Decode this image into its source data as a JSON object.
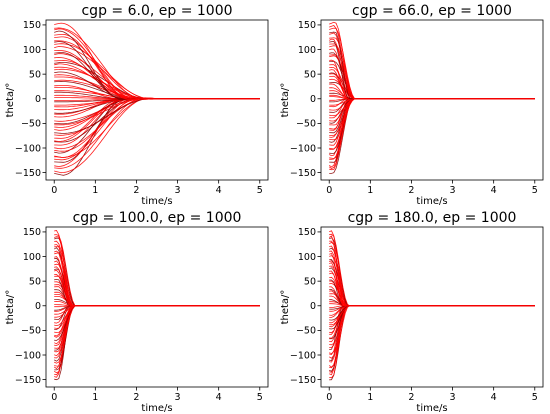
{
  "chart_data": [
    {
      "type": "line",
      "title": "cgp = 6.0, ep = 1000",
      "xlabel": "time/s",
      "ylabel": "theta/°",
      "xlim": [
        -0.2,
        5.2
      ],
      "ylim": [
        -165,
        160
      ],
      "xticks": [
        0,
        1,
        2,
        3,
        4,
        5
      ],
      "yticks": [
        -150,
        -100,
        -50,
        0,
        50,
        100,
        150
      ],
      "grid": false,
      "trajectories": {
        "count": 60,
        "initial_angle_range": [
          -150,
          150
        ],
        "peak_time": 0.15,
        "settle_time": 2.3,
        "overshoot": 18,
        "final_value": 0
      },
      "colors": {
        "main": "#ff0000",
        "dark": "#8b0000"
      }
    },
    {
      "type": "line",
      "title": "cgp = 66.0, ep = 1000",
      "xlabel": "time/s",
      "ylabel": "theta/°",
      "xlim": [
        -0.2,
        5.2
      ],
      "ylim": [
        -165,
        160
      ],
      "xticks": [
        0,
        1,
        2,
        3,
        4,
        5
      ],
      "yticks": [
        -150,
        -100,
        -50,
        0,
        50,
        100,
        150
      ],
      "grid": false,
      "trajectories": {
        "count": 60,
        "initial_angle_range": [
          -150,
          150
        ],
        "peak_time": 0.1,
        "settle_time": 0.6,
        "overshoot": 5,
        "final_value": 0
      },
      "colors": {
        "main": "#ff0000",
        "dark": "#8b0000"
      }
    },
    {
      "type": "line",
      "title": "cgp = 100.0, ep = 1000",
      "xlabel": "time/s",
      "ylabel": "theta/°",
      "xlim": [
        -0.2,
        5.2
      ],
      "ylim": [
        -165,
        160
      ],
      "xticks": [
        0,
        1,
        2,
        3,
        4,
        5
      ],
      "yticks": [
        -150,
        -100,
        -50,
        0,
        50,
        100,
        150
      ],
      "grid": false,
      "trajectories": {
        "count": 60,
        "initial_angle_range": [
          -150,
          150
        ],
        "peak_time": 0.07,
        "settle_time": 0.5,
        "overshoot": 3,
        "final_value": 0
      },
      "colors": {
        "main": "#ff0000",
        "dark": "#8b0000"
      }
    },
    {
      "type": "line",
      "title": "cgp = 180.0, ep = 1000",
      "xlabel": "time/s",
      "ylabel": "theta/°",
      "xlim": [
        -0.2,
        5.2
      ],
      "ylim": [
        -165,
        160
      ],
      "xticks": [
        0,
        1,
        2,
        3,
        4,
        5
      ],
      "yticks": [
        -150,
        -100,
        -50,
        0,
        50,
        100,
        150
      ],
      "grid": false,
      "trajectories": {
        "count": 60,
        "initial_angle_range": [
          -150,
          150
        ],
        "peak_time": 0.05,
        "settle_time": 0.45,
        "overshoot": 2,
        "final_value": 0
      },
      "colors": {
        "main": "#ff0000",
        "dark": "#8b0000"
      }
    }
  ]
}
